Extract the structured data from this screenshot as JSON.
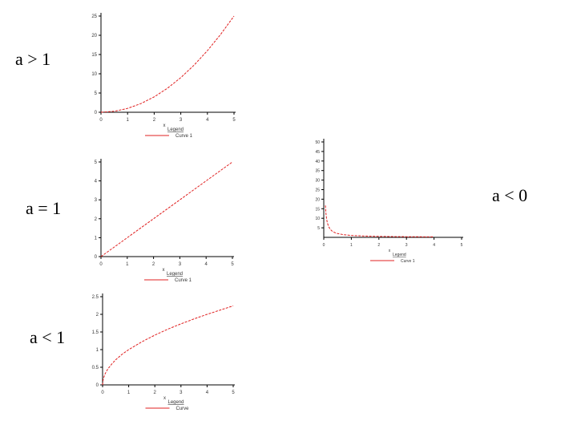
{
  "labels": {
    "p1": "a > 1",
    "p2": "a = 1",
    "p3": "a < 1",
    "p4": "a < 0"
  },
  "colors": {
    "curve": "#e02020",
    "axis": "#000000"
  },
  "chart_data": [
    {
      "id": "p1",
      "type": "line",
      "title": "",
      "xlabel": "x",
      "ylabel": "",
      "xlim": [
        0,
        5
      ],
      "ylim": [
        0,
        25
      ],
      "xticks": [
        "0",
        "1",
        "2",
        "3",
        "4",
        "5"
      ],
      "yticks": [
        "0",
        "5",
        "10",
        "15",
        "20",
        "25"
      ],
      "legend": {
        "title": "Legend",
        "entries": [
          "Curve 1"
        ]
      },
      "series": [
        {
          "x": [
            0,
            0.5,
            1,
            1.5,
            2,
            2.5,
            3,
            3.5,
            4,
            4.5,
            5
          ],
          "y": [
            0,
            0.25,
            1,
            2.25,
            4,
            6.25,
            9,
            12.25,
            16,
            20.25,
            25
          ]
        }
      ]
    },
    {
      "id": "p2",
      "type": "line",
      "title": "",
      "xlabel": "x",
      "ylabel": "",
      "xlim": [
        0,
        5
      ],
      "ylim": [
        0,
        5
      ],
      "xticks": [
        "0",
        "1",
        "2",
        "3",
        "4",
        "5"
      ],
      "yticks": [
        "0",
        "1",
        "2",
        "3",
        "4",
        "5"
      ],
      "legend": {
        "title": "Legend",
        "entries": [
          "Curve 1"
        ]
      },
      "series": [
        {
          "x": [
            0,
            5
          ],
          "y": [
            0,
            5
          ]
        }
      ]
    },
    {
      "id": "p3",
      "type": "line",
      "title": "",
      "xlabel": "x",
      "ylabel": "",
      "xlim": [
        0,
        5
      ],
      "ylim": [
        0,
        2.5
      ],
      "xticks": [
        "0",
        "1",
        "2",
        "3",
        "4",
        "5"
      ],
      "yticks": [
        "0",
        "0.5",
        "1",
        "1.5",
        "2",
        "2.5"
      ],
      "legend": {
        "title": "Legend",
        "entries": [
          "Curve"
        ]
      },
      "series": [
        {
          "x": [
            0,
            0.02,
            0.05,
            0.1,
            0.2,
            0.35,
            0.5,
            0.75,
            1,
            1.5,
            2,
            2.5,
            3,
            3.5,
            4,
            4.5,
            5
          ],
          "y": [
            0,
            0.14,
            0.22,
            0.32,
            0.45,
            0.59,
            0.71,
            0.87,
            1,
            1.22,
            1.41,
            1.58,
            1.73,
            1.87,
            2,
            2.12,
            2.24
          ]
        }
      ]
    },
    {
      "id": "p4",
      "type": "line",
      "title": "",
      "xlabel": "x",
      "ylabel": "",
      "xlim": [
        0,
        5
      ],
      "ylim": [
        0,
        50
      ],
      "xticks": [
        "0",
        "1",
        "2",
        "3",
        "4",
        "5"
      ],
      "yticks": [
        "5",
        "10",
        "15",
        "20",
        "25",
        "30",
        "35",
        "40",
        "45",
        "50"
      ],
      "legend": {
        "title": "Legend",
        "entries": [
          "Curve 1"
        ]
      },
      "series": [
        {
          "x": [
            0.06,
            0.08,
            0.1,
            0.12,
            0.15,
            0.2,
            0.25,
            0.3,
            0.4,
            0.5,
            0.7,
            1,
            1.5,
            2,
            2.5,
            3,
            3.5,
            4
          ],
          "y": [
            16.7,
            12.5,
            10,
            8.3,
            6.7,
            5,
            4,
            3.3,
            2.5,
            2,
            1.43,
            1,
            0.67,
            0.5,
            0.4,
            0.33,
            0.29,
            0.25
          ]
        }
      ]
    }
  ]
}
